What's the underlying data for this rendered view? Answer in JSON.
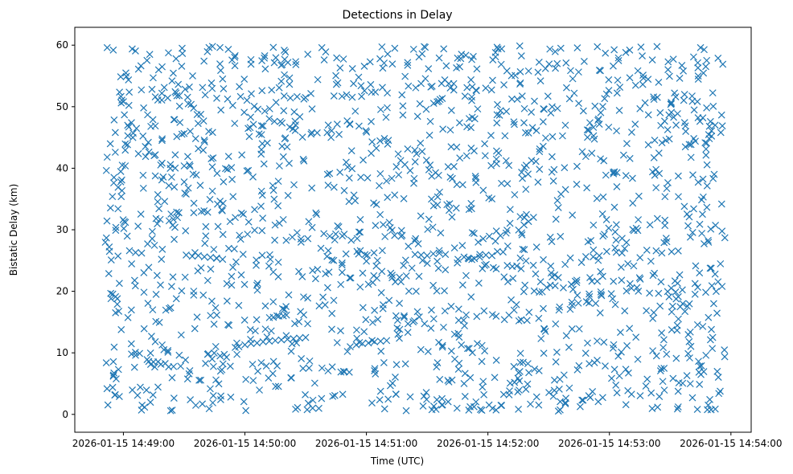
{
  "chart_data": {
    "type": "scatter",
    "title": "Detections in Delay",
    "xlabel": "Time (UTC)",
    "ylabel": "Bistatic Delay (km)",
    "x_unit": "time",
    "x_range": [
      "2026-01-15 14:48:36",
      "2026-01-15 14:54:10"
    ],
    "ylim": [
      -2.9,
      62.9
    ],
    "x_ticks": [
      "2026-01-15 14:49:00",
      "2026-01-15 14:50:00",
      "2026-01-15 14:51:00",
      "2026-01-15 14:52:00",
      "2026-01-15 14:53:00",
      "2026-01-15 14:54:00"
    ],
    "y_ticks": [
      0,
      10,
      20,
      30,
      40,
      50,
      60
    ],
    "marker": "x",
    "color": "#1f77b4",
    "grid": false,
    "series": [
      {
        "x_start": "2026-01-15 14:48:51",
        "x_end": "2026-01-15 14:53:57",
        "y_min": 0.5,
        "y_max": 59.9,
        "points": [
          [
            "2026-01-15 14:48:52",
            59.6
          ],
          [
            "2026-01-15 14:48:55",
            59.2
          ],
          [
            "2026-01-15 14:48:53",
            27.2
          ],
          [
            "2026-01-15 14:48:54",
            25.1
          ],
          [
            "2026-01-15 14:48:52",
            41.8
          ],
          [
            "2026-01-15 14:48:56",
            45.8
          ],
          [
            "2026-01-15 14:48:56",
            42.6
          ],
          [
            "2026-01-15 14:48:57",
            18.8
          ],
          [
            "2026-01-15 14:48:58",
            21.3
          ],
          [
            "2026-01-15 14:48:55",
            6.2
          ],
          [
            "2026-01-15 14:48:56",
            3.2
          ],
          [
            "2026-01-15 14:48:58",
            2.9
          ],
          [
            "2026-01-15 14:49:04",
            9.8
          ],
          [
            "2026-01-15 14:49:06",
            9.6
          ],
          [
            "2026-01-15 14:49:08",
            9.9
          ],
          [
            "2026-01-15 14:49:03",
            26.6
          ],
          [
            "2026-01-15 14:49:06",
            26.3
          ],
          [
            "2026-01-15 14:49:09",
            26.2
          ],
          [
            "2026-01-15 14:49:07",
            3.1
          ],
          [
            "2026-01-15 14:49:01",
            31.2
          ],
          [
            "2026-01-15 14:49:10",
            49.8
          ],
          [
            "2026-01-15 14:49:13",
            58.5
          ],
          [
            "2026-01-15 14:49:17",
            35.7
          ],
          [
            "2026-01-15 14:49:16",
            15.1
          ],
          [
            "2026-01-15 14:49:20",
            10.5
          ],
          [
            "2026-01-15 14:49:22",
            10.1
          ],
          [
            "2026-01-15 14:49:24",
            54.2
          ],
          [
            "2026-01-15 14:49:26",
            57.8
          ],
          [
            "2026-01-15 14:49:29",
            59.5
          ],
          [
            "2026-01-15 14:49:31",
            25.9
          ],
          [
            "2026-01-15 14:49:34",
            25.7
          ],
          [
            "2026-01-15 14:49:37",
            25.8
          ],
          [
            "2026-01-15 14:49:40",
            25.6
          ],
          [
            "2026-01-15 14:49:43",
            25.5
          ],
          [
            "2026-01-15 14:49:46",
            25.4
          ],
          [
            "2026-01-15 14:49:49",
            25.2
          ],
          [
            "2026-01-15 14:49:33",
            46.0
          ],
          [
            "2026-01-15 14:49:36",
            38.9
          ],
          [
            "2026-01-15 14:49:39",
            1.7
          ],
          [
            "2026-01-15 14:49:44",
            59.8
          ],
          [
            "2026-01-15 14:49:49",
            54.5
          ],
          [
            "2026-01-15 14:49:53",
            2.8
          ],
          [
            "2026-01-15 14:49:57",
            11.0
          ],
          [
            "2026-01-15 14:50:00",
            11.3
          ],
          [
            "2026-01-15 14:50:03",
            11.5
          ],
          [
            "2026-01-15 14:50:06",
            11.6
          ],
          [
            "2026-01-15 14:50:09",
            11.8
          ],
          [
            "2026-01-15 14:50:12",
            11.9
          ],
          [
            "2026-01-15 14:50:15",
            12.0
          ],
          [
            "2026-01-15 14:50:18",
            12.1
          ],
          [
            "2026-01-15 14:50:21",
            12.2
          ],
          [
            "2026-01-15 14:50:24",
            12.3
          ],
          [
            "2026-01-15 14:50:27",
            12.4
          ],
          [
            "2026-01-15 14:50:30",
            12.5
          ],
          [
            "2026-01-15 14:50:03",
            56.9
          ],
          [
            "2026-01-15 14:50:08",
            42.3
          ],
          [
            "2026-01-15 14:50:14",
            18.3
          ],
          [
            "2026-01-15 14:50:20",
            58.9
          ],
          [
            "2026-01-15 14:50:26",
            1.1
          ],
          [
            "2026-01-15 14:50:33",
            45.8
          ],
          [
            "2026-01-15 14:50:38",
            59.6
          ],
          [
            "2026-01-15 14:50:43",
            25.1
          ],
          [
            "2026-01-15 14:50:48",
            24.6
          ],
          [
            "2026-01-15 14:50:52",
            11.0
          ],
          [
            "2026-01-15 14:50:55",
            11.3
          ],
          [
            "2026-01-15 14:50:58",
            11.5
          ],
          [
            "2026-01-15 14:51:01",
            11.6
          ],
          [
            "2026-01-15 14:51:04",
            11.8
          ],
          [
            "2026-01-15 14:51:07",
            11.9
          ],
          [
            "2026-01-15 14:51:10",
            12.0
          ],
          [
            "2026-01-15 14:51:00",
            24.9
          ],
          [
            "2026-01-15 14:51:04",
            16.9
          ],
          [
            "2026-01-15 14:51:09",
            0.9
          ],
          [
            "2026-01-15 14:51:14",
            59.5
          ],
          [
            "2026-01-15 14:51:19",
            40.6
          ],
          [
            "2026-01-15 14:51:24",
            26.0
          ],
          [
            "2026-01-15 14:51:27",
            25.9
          ],
          [
            "2026-01-15 14:51:30",
            25.8
          ],
          [
            "2026-01-15 14:51:33",
            26.1
          ],
          [
            "2026-01-15 14:51:36",
            26.2
          ],
          [
            "2026-01-15 14:51:39",
            26.0
          ],
          [
            "2026-01-15 14:51:42",
            49.4
          ],
          [
            "2026-01-15 14:51:45",
            57.9
          ],
          [
            "2026-01-15 14:51:48",
            15.3
          ],
          [
            "2026-01-15 14:51:52",
            51.0
          ],
          [
            "2026-01-15 14:51:56",
            26.0
          ],
          [
            "2026-01-15 14:51:59",
            25.9
          ],
          [
            "2026-01-15 14:52:02",
            25.8
          ],
          [
            "2026-01-15 14:51:57",
            8.6
          ],
          [
            "2026-01-15 14:52:05",
            59.4
          ],
          [
            "2026-01-15 14:52:11",
            33.3
          ],
          [
            "2026-01-15 14:52:16",
            25.4
          ],
          [
            "2026-01-15 14:52:22",
            46.6
          ],
          [
            "2026-01-15 14:52:26",
            54.2
          ],
          [
            "2026-01-15 14:52:31",
            24.1
          ],
          [
            "2026-01-15 14:52:36",
            59.5
          ],
          [
            "2026-01-15 14:52:40",
            10.9
          ],
          [
            "2026-01-15 14:52:44",
            40.3
          ],
          [
            "2026-01-15 14:52:47",
            2.3
          ],
          [
            "2026-01-15 14:52:52",
            25.6
          ],
          [
            "2026-01-15 14:52:55",
            25.8
          ],
          [
            "2026-01-15 14:52:58",
            58.7
          ],
          [
            "2026-01-15 14:53:02",
            39.1
          ],
          [
            "2026-01-15 14:53:06",
            21.8
          ],
          [
            "2026-01-15 14:53:10",
            59.2
          ],
          [
            "2026-01-15 14:53:14",
            29.9
          ],
          [
            "2026-01-15 14:53:18",
            4.6
          ],
          [
            "2026-01-15 14:53:22",
            51.2
          ],
          [
            "2026-01-15 14:53:25",
            17.6
          ],
          [
            "2026-01-15 14:53:29",
            57.3
          ],
          [
            "2026-01-15 14:53:33",
            9.1
          ],
          [
            "2026-01-15 14:53:37",
            33.8
          ],
          [
            "2026-01-15 14:53:41",
            2.7
          ],
          [
            "2026-01-15 14:53:45",
            59.6
          ],
          [
            "2026-01-15 14:53:48",
            44.1
          ],
          [
            "2026-01-15 14:53:51",
            12.5
          ],
          [
            "2026-01-15 14:53:54",
            3.4
          ],
          [
            "2026-01-15 14:53:56",
            56.9
          ],
          [
            "2026-01-15 14:53:57",
            28.7
          ],
          [
            "2026-01-15 14:53:55",
            45.8
          ]
        ],
        "random_fill_count": 1600
      }
    ]
  }
}
